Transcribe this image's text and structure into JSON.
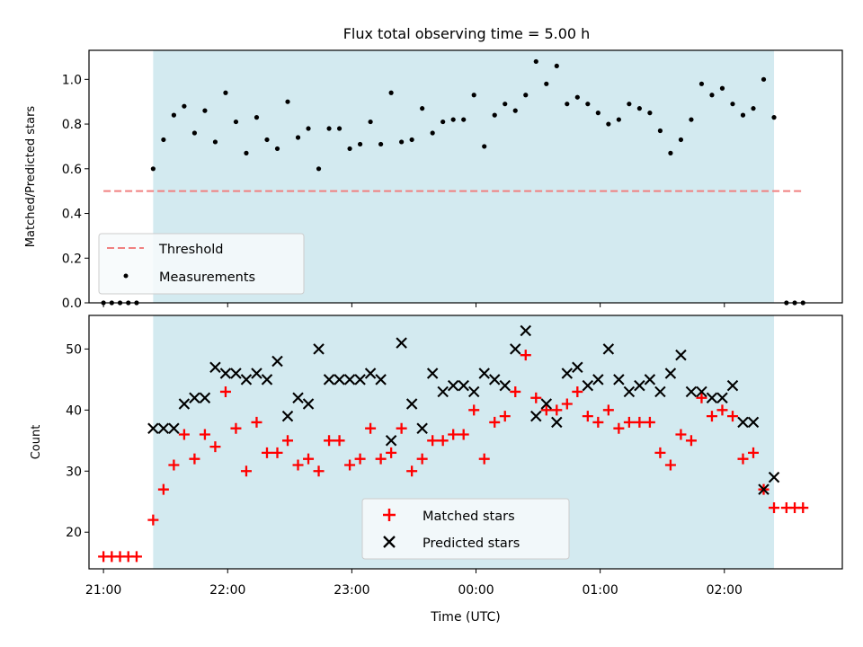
{
  "chart_data": [
    {
      "type": "scatter",
      "title": "Flux total observing time = 5.00 h",
      "xlabel": "",
      "ylabel": "Matched/Predicted stars",
      "ylim": [
        0,
        1.13
      ],
      "xlim": [
        "20:53",
        "02:57"
      ],
      "y_ticks": [
        "0.0",
        "0.2",
        "0.4",
        "0.6",
        "0.8",
        "1.0"
      ],
      "y_tick_values": [
        0,
        0.2,
        0.4,
        0.6,
        0.8,
        1.0
      ],
      "x_tick_labels_hidden": true,
      "shaded_interval": [
        "21:24",
        "02:24"
      ],
      "threshold": {
        "name": "Threshold",
        "value": 0.5,
        "x_range": [
          "21:00",
          "02:38"
        ]
      },
      "legend": {
        "position": "lower-left",
        "entries": [
          "Threshold",
          "Measurements"
        ]
      },
      "series": [
        {
          "name": "Measurements",
          "x": [
            "21:00",
            "21:04",
            "21:08",
            "21:12",
            "21:16",
            "21:24",
            "21:29",
            "21:34",
            "21:39",
            "21:44",
            "21:49",
            "21:54",
            "21:59",
            "22:04",
            "22:09",
            "22:14",
            "22:19",
            "22:24",
            "22:29",
            "22:34",
            "22:39",
            "22:44",
            "22:49",
            "22:54",
            "22:59",
            "23:04",
            "23:09",
            "23:14",
            "23:19",
            "23:24",
            "23:29",
            "23:34",
            "23:39",
            "23:44",
            "23:49",
            "23:54",
            "23:59",
            "00:04",
            "00:09",
            "00:14",
            "00:19",
            "00:24",
            "00:29",
            "00:34",
            "00:39",
            "00:44",
            "00:49",
            "00:54",
            "00:59",
            "01:04",
            "01:09",
            "01:14",
            "01:19",
            "01:24",
            "01:29",
            "01:34",
            "01:39",
            "01:44",
            "01:49",
            "01:54",
            "01:59",
            "02:04",
            "02:09",
            "02:14",
            "02:19",
            "02:24",
            "02:30",
            "02:34",
            "02:38"
          ],
          "y": [
            0,
            0,
            0,
            0,
            0,
            0.6,
            0.73,
            0.84,
            0.88,
            0.76,
            0.86,
            0.72,
            0.94,
            0.81,
            0.67,
            0.83,
            0.73,
            0.69,
            0.9,
            0.74,
            0.78,
            0.6,
            0.78,
            0.78,
            0.69,
            0.71,
            0.81,
            0.71,
            0.94,
            0.72,
            0.73,
            0.87,
            0.76,
            0.81,
            0.82,
            0.82,
            0.93,
            0.7,
            0.84,
            0.89,
            0.86,
            0.93,
            1.08,
            0.98,
            1.06,
            0.89,
            0.92,
            0.89,
            0.85,
            0.8,
            0.82,
            0.89,
            0.87,
            0.85,
            0.77,
            0.67,
            0.73,
            0.82,
            0.98,
            0.93,
            0.96,
            0.89,
            0.84,
            0.87,
            1.0,
            0.83,
            0,
            0,
            0
          ]
        }
      ]
    },
    {
      "type": "scatter",
      "title": "",
      "xlabel": "Time (UTC)",
      "ylabel": "Count",
      "ylim": [
        14,
        55.5
      ],
      "xlim": [
        "20:53",
        "02:57"
      ],
      "y_ticks": [
        "20",
        "30",
        "40",
        "50"
      ],
      "y_tick_values": [
        20,
        30,
        40,
        50
      ],
      "x_ticks": [
        "21:00",
        "22:00",
        "23:00",
        "00:00",
        "01:00",
        "02:00"
      ],
      "shaded_interval": [
        "21:24",
        "02:24"
      ],
      "legend": {
        "position": "lower-center",
        "entries": [
          "Matched stars",
          "Predicted stars"
        ]
      },
      "series": [
        {
          "name": "Matched stars",
          "marker": "plus",
          "color": "#ff0000",
          "x": [
            "21:00",
            "21:04",
            "21:08",
            "21:12",
            "21:16",
            "21:24",
            "21:29",
            "21:34",
            "21:39",
            "21:44",
            "21:49",
            "21:54",
            "21:59",
            "22:04",
            "22:09",
            "22:14",
            "22:19",
            "22:24",
            "22:29",
            "22:34",
            "22:39",
            "22:44",
            "22:49",
            "22:54",
            "22:59",
            "23:04",
            "23:09",
            "23:14",
            "23:19",
            "23:24",
            "23:29",
            "23:34",
            "23:39",
            "23:44",
            "23:49",
            "23:54",
            "23:59",
            "00:04",
            "00:09",
            "00:14",
            "00:19",
            "00:24",
            "00:29",
            "00:34",
            "00:39",
            "00:44",
            "00:49",
            "00:54",
            "00:59",
            "01:04",
            "01:09",
            "01:14",
            "01:19",
            "01:24",
            "01:29",
            "01:34",
            "01:39",
            "01:44",
            "01:49",
            "01:54",
            "01:59",
            "02:04",
            "02:09",
            "02:14",
            "02:19",
            "02:24",
            "02:30",
            "02:34",
            "02:38"
          ],
          "y": [
            16,
            16,
            16,
            16,
            16,
            22,
            27,
            31,
            36,
            32,
            36,
            34,
            43,
            37,
            30,
            38,
            33,
            33,
            35,
            31,
            32,
            30,
            35,
            35,
            31,
            32,
            37,
            32,
            33,
            37,
            30,
            32,
            35,
            35,
            36,
            36,
            40,
            32,
            38,
            39,
            43,
            49,
            42,
            40,
            40,
            41,
            43,
            39,
            38,
            40,
            37,
            38,
            38,
            38,
            33,
            31,
            36,
            35,
            42,
            39,
            40,
            39,
            32,
            33,
            27,
            24,
            24,
            24,
            24
          ]
        },
        {
          "name": "Predicted stars",
          "marker": "x",
          "color": "#000000",
          "x": [
            "21:24",
            "21:29",
            "21:34",
            "21:39",
            "21:44",
            "21:49",
            "21:54",
            "21:59",
            "22:04",
            "22:09",
            "22:14",
            "22:19",
            "22:24",
            "22:29",
            "22:34",
            "22:39",
            "22:44",
            "22:49",
            "22:54",
            "22:59",
            "23:04",
            "23:09",
            "23:14",
            "23:19",
            "23:24",
            "23:29",
            "23:34",
            "23:39",
            "23:44",
            "23:49",
            "23:54",
            "23:59",
            "00:04",
            "00:09",
            "00:14",
            "00:19",
            "00:24",
            "00:29",
            "00:34",
            "00:39",
            "00:44",
            "00:49",
            "00:54",
            "00:59",
            "01:04",
            "01:09",
            "01:14",
            "01:19",
            "01:24",
            "01:29",
            "01:34",
            "01:39",
            "01:44",
            "01:49",
            "01:54",
            "01:59",
            "02:04",
            "02:09",
            "02:14",
            "02:19",
            "02:24"
          ],
          "y": [
            37,
            37,
            37,
            41,
            42,
            42,
            47,
            46,
            46,
            45,
            46,
            45,
            48,
            39,
            42,
            41,
            50,
            45,
            45,
            45,
            45,
            46,
            45,
            35,
            51,
            41,
            37,
            46,
            43,
            44,
            44,
            43,
            46,
            45,
            44,
            50,
            53,
            39,
            41,
            38,
            46,
            47,
            44,
            45,
            50,
            45,
            43,
            44,
            45,
            43,
            46,
            49,
            43,
            43,
            42,
            42,
            44,
            38,
            38,
            27,
            29
          ]
        }
      ]
    }
  ],
  "colors": {
    "shade": "#d3eaf0",
    "threshold": "#f08080",
    "matched": "#ff0000",
    "predicted": "#000000"
  }
}
